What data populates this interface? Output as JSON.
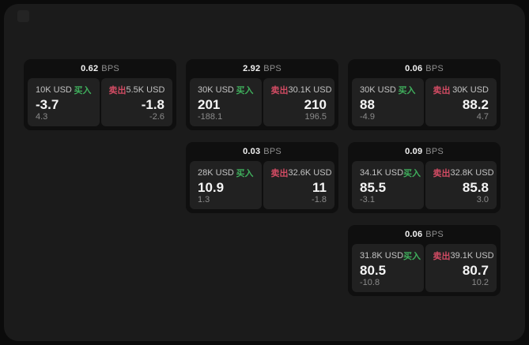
{
  "theme": {
    "outer_background": "#0b0b0b",
    "panel_background": "#1b1b1b",
    "card_background": "#0f0f0f",
    "tile_background": "#212121",
    "buy_color": "#3fae5c",
    "sell_color": "#d14b63"
  },
  "labels": {
    "bps_suffix": "BPS",
    "buy": "买入",
    "sell": "卖出"
  },
  "cards": [
    {
      "bps": "0.62",
      "buy": {
        "size": "10K USD",
        "value": "-3.7",
        "delta": "4.3"
      },
      "sell": {
        "size": "5.5K USD",
        "value": "-1.8",
        "delta": "-2.6"
      }
    },
    {
      "bps": "2.92",
      "buy": {
        "size": "30K USD",
        "value": "201",
        "delta": "-188.1"
      },
      "sell": {
        "size": "30.1K USD",
        "value": "210",
        "delta": "196.5"
      }
    },
    {
      "bps": "0.06",
      "buy": {
        "size": "30K USD",
        "value": "88",
        "delta": "-4.9"
      },
      "sell": {
        "size": "30K USD",
        "value": "88.2",
        "delta": "4.7"
      }
    },
    {
      "bps": "0.03",
      "buy": {
        "size": "28K USD",
        "value": "10.9",
        "delta": "1.3"
      },
      "sell": {
        "size": "32.6K USD",
        "value": "11",
        "delta": "-1.8"
      }
    },
    {
      "bps": "0.09",
      "buy": {
        "size": "34.1K USD",
        "value": "85.5",
        "delta": "-3.1"
      },
      "sell": {
        "size": "32.8K USD",
        "value": "85.8",
        "delta": "3.0"
      }
    },
    {
      "bps": "0.06",
      "buy": {
        "size": "31.8K USD",
        "value": "80.5",
        "delta": "-10.8"
      },
      "sell": {
        "size": "39.1K USD",
        "value": "80.7",
        "delta": "10.2"
      }
    }
  ]
}
